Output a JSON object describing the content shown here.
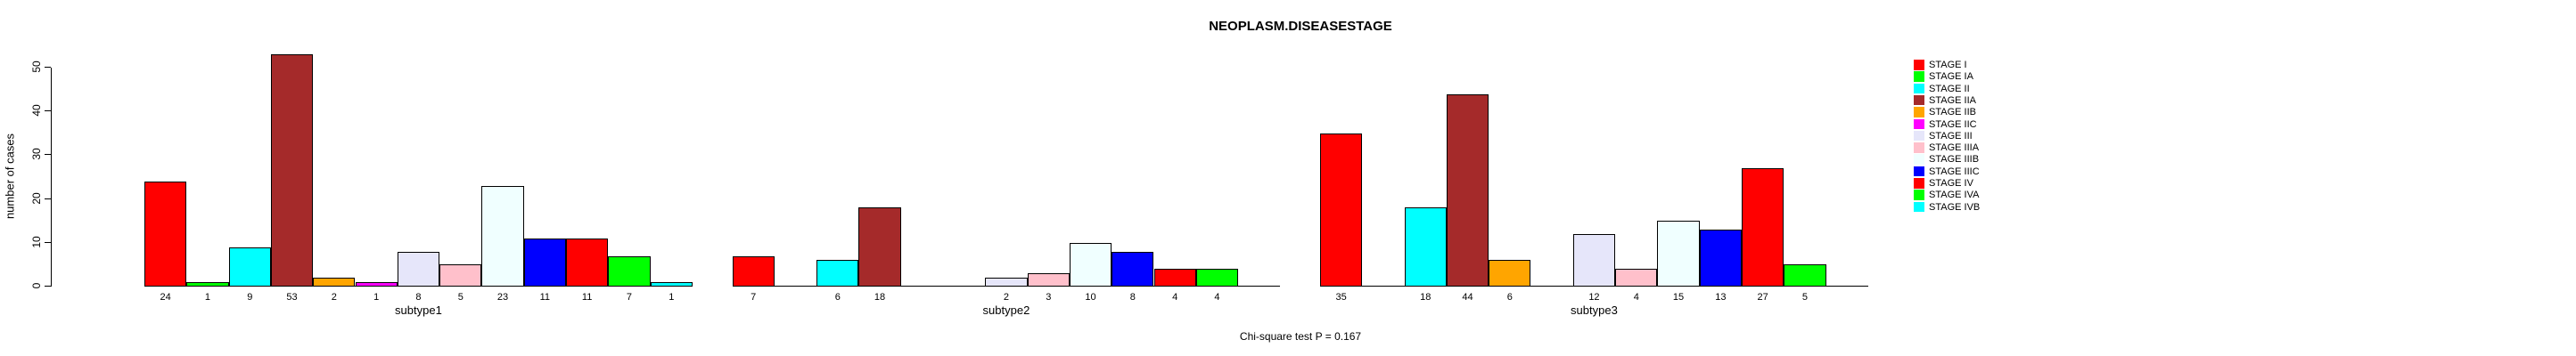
{
  "title": "NEOPLASM.DISEASESTAGE",
  "footer": "Chi-square test P = 0.167",
  "y_axis": {
    "label": "number of cases",
    "ticks": [
      0,
      10,
      20,
      30,
      40,
      50
    ]
  },
  "chart_data": {
    "type": "bar",
    "title": "NEOPLASM.DISEASESTAGE",
    "xlabel": "",
    "ylabel": "number of cases",
    "ylim": [
      0,
      53
    ],
    "yticks": [
      0,
      10,
      20,
      30,
      40,
      50
    ],
    "grid": false,
    "legend_position": "right",
    "bar_value_labels_shown": true,
    "categories": [
      "STAGE I",
      "STAGE IA",
      "STAGE II",
      "STAGE IIA",
      "STAGE IIB",
      "STAGE IIC",
      "STAGE III",
      "STAGE IIIA",
      "STAGE IIIB",
      "STAGE IIIC",
      "STAGE IV",
      "STAGE IVA",
      "STAGE IVB"
    ],
    "colors": [
      "#FF0000",
      "#00FF00",
      "#00FFFF",
      "#A52A2A",
      "#FFA500",
      "#FF00FF",
      "#E6E6FA",
      "#FFC0CB",
      "#F0FFFF",
      "#0000FF",
      "#FF0000",
      "#00FF00",
      "#00FFFF"
    ],
    "groups": [
      {
        "name": "subtype1",
        "values": [
          24,
          1,
          9,
          53,
          2,
          1,
          8,
          5,
          23,
          11,
          11,
          7,
          1
        ]
      },
      {
        "name": "subtype2",
        "values": [
          7,
          0,
          6,
          18,
          0,
          0,
          2,
          3,
          10,
          8,
          4,
          4,
          0
        ]
      },
      {
        "name": "subtype3",
        "values": [
          35,
          0,
          18,
          44,
          6,
          0,
          12,
          4,
          15,
          13,
          27,
          5,
          0
        ]
      }
    ],
    "annotations": [
      "Chi-square test P = 0.167"
    ]
  },
  "colors": {
    "background": "#FFFFFF",
    "axis": "#000000",
    "text": "#000000"
  }
}
